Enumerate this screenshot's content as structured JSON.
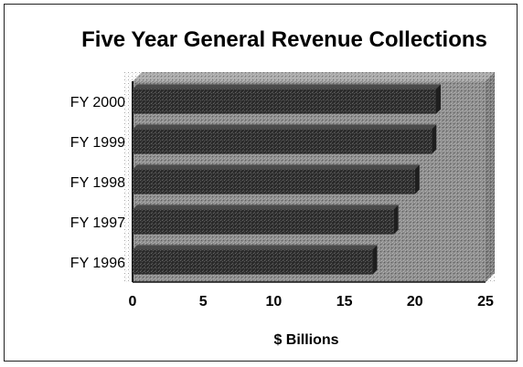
{
  "chart_data": {
    "type": "bar",
    "orientation": "horizontal",
    "title": "Five Year General Revenue Collections",
    "xlabel": "$ Billions",
    "ylabel": "",
    "categories": [
      "FY 2000",
      "FY 1999",
      "FY 1998",
      "FY 1997",
      "FY 1996"
    ],
    "values": [
      21.5,
      21.2,
      20.0,
      18.5,
      17.0
    ],
    "xlim": [
      0,
      25
    ],
    "xticks": [
      "0",
      "5",
      "10",
      "15",
      "20",
      "25"
    ],
    "grid": false,
    "legend": "none",
    "colors": {
      "plot_background": "#8c8c8c",
      "bar_fill": "#2e2e2e",
      "text": "#000000"
    }
  }
}
